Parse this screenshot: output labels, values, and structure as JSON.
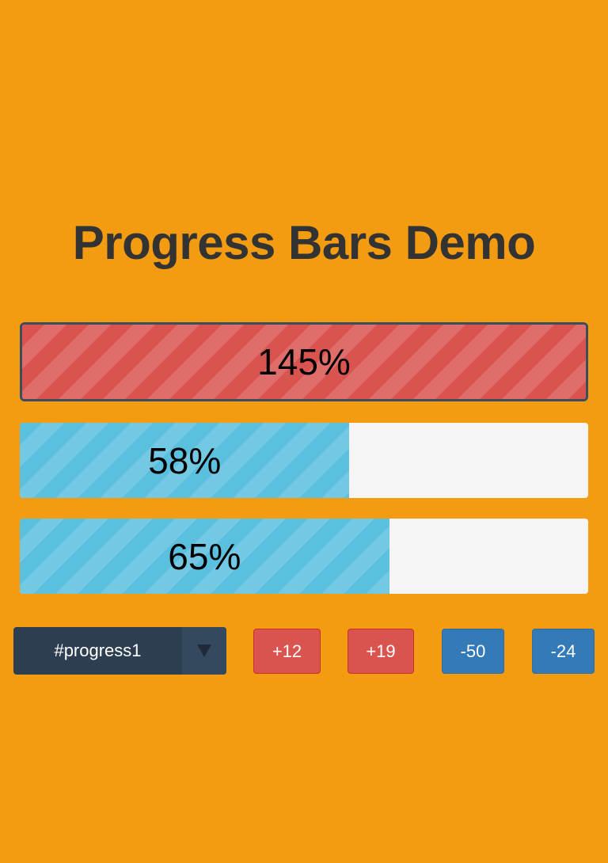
{
  "title": "Progress Bars Demo",
  "colors": {
    "background": "#f39c12",
    "over_limit": "#d9534f",
    "in_progress": "#5bc0de",
    "track": "#f5f5f5",
    "active_border": "#3b4d5f",
    "increase_button": "#d9534f",
    "decrease_button": "#337ab7",
    "select": "#2c3e50"
  },
  "bars": [
    {
      "label": "145%",
      "value": 145,
      "active": true
    },
    {
      "label": "58%",
      "value": 58,
      "active": false
    },
    {
      "label": "65%",
      "value": 65,
      "active": false
    }
  ],
  "controls": {
    "selected_bar": "#progress1",
    "dropdown_icon": "triangle-down-icon",
    "buttons": [
      "+12",
      "+19",
      "-50",
      "-24"
    ]
  }
}
